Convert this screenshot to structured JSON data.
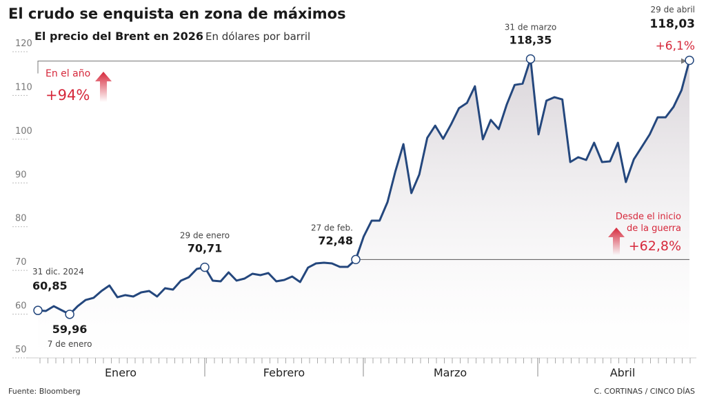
{
  "chart_data": {
    "type": "line",
    "title": "El crudo se enquista en zona de máximos",
    "subtitle": "El precio del Brent en 2026",
    "units": "En dólares por barril",
    "source": "Fuente: Bloomberg",
    "credit": "C. CORTINAS / CINCO DÍAS",
    "annotations": [
      {
        "text": "En el año",
        "value_text": "+94%"
      },
      {
        "text": "Desde el inicio de la guerra",
        "value_text": "+62,8%"
      },
      {
        "text": "+6,1%"
      }
    ],
    "months": [
      "Enero",
      "Febrero",
      "Marzo",
      "Abril"
    ],
    "x": [
      "31 dic. 2024",
      null,
      null,
      null,
      "7 de enero",
      null,
      null,
      null,
      null,
      null,
      null,
      null,
      null,
      null,
      null,
      null,
      null,
      null,
      null,
      null,
      null,
      "29 de enero",
      null,
      null,
      null,
      null,
      null,
      null,
      null,
      null,
      null,
      null,
      null,
      null,
      null,
      null,
      null,
      null,
      null,
      null,
      "27 de feb.",
      null,
      null,
      null,
      null,
      null,
      null,
      null,
      null,
      null,
      null,
      null,
      null,
      null,
      null,
      null,
      null,
      null,
      null,
      null,
      null,
      null,
      "31 de marzo",
      null,
      null,
      null,
      null,
      null,
      null,
      null,
      null,
      null,
      null,
      null,
      null,
      null,
      null,
      null,
      null,
      null,
      null,
      null,
      "29 de abril"
    ],
    "series": [
      {
        "name": "Brent",
        "color": "#24477d",
        "values": [
          60.85,
          60.72,
          61.82,
          60.88,
          59.96,
          61.82,
          63.24,
          63.72,
          65.29,
          66.55,
          63.87,
          64.35,
          64.03,
          64.98,
          65.29,
          64.03,
          65.92,
          65.61,
          67.66,
          68.45,
          70.34,
          70.71,
          67.66,
          67.5,
          69.55,
          67.66,
          68.13,
          69.23,
          68.92,
          69.39,
          67.5,
          67.82,
          68.6,
          67.34,
          70.65,
          71.6,
          71.76,
          71.6,
          70.81,
          70.81,
          72.48,
          77.75,
          81.37,
          81.37,
          85.63,
          92.72,
          98.87,
          87.68,
          91.94,
          100.3,
          103.1,
          100.1,
          103.4,
          107.1,
          108.3,
          112.1,
          99.98,
          104.4,
          102.3,
          107.9,
          112.4,
          112.7,
          118.35,
          101.1,
          108.8,
          109.6,
          109.1,
          94.77,
          95.88,
          95.25,
          99.19,
          94.77,
          94.93,
          99.19,
          90.2,
          95.4,
          98.24,
          101.1,
          105.0,
          105.0,
          107.4,
          111.2,
          118.03
        ],
        "value_labels": [
          "60,85",
          null,
          null,
          null,
          "59,96",
          null,
          null,
          null,
          null,
          null,
          null,
          null,
          null,
          null,
          null,
          null,
          null,
          null,
          null,
          null,
          null,
          "70,71",
          null,
          null,
          null,
          null,
          null,
          null,
          null,
          null,
          null,
          null,
          null,
          null,
          null,
          null,
          null,
          null,
          null,
          null,
          "72,48",
          null,
          null,
          null,
          null,
          null,
          null,
          null,
          null,
          null,
          null,
          null,
          null,
          null,
          null,
          null,
          null,
          null,
          null,
          null,
          null,
          null,
          "118,35",
          null,
          null,
          null,
          null,
          null,
          null,
          null,
          null,
          null,
          null,
          null,
          null,
          null,
          null,
          null,
          null,
          null,
          null,
          null,
          "118,03"
        ]
      }
    ],
    "ylim": [
      50,
      120
    ],
    "yticks": [
      50,
      60,
      70,
      80,
      90,
      100,
      110,
      120
    ]
  }
}
